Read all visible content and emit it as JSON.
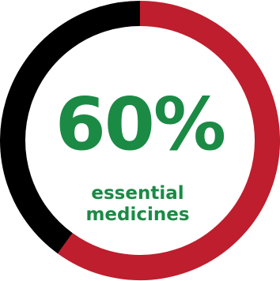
{
  "chart_data": {
    "type": "pie",
    "variant": "donut",
    "slices": [
      {
        "label": "essential medicines",
        "value": 60,
        "color": "#be1e2d"
      },
      {
        "label": "",
        "value": 40,
        "color": "#000000"
      }
    ],
    "center_value": "60%",
    "center_label_lines": [
      "essential",
      "medicines"
    ],
    "center_text_color": "#1b8a45"
  }
}
